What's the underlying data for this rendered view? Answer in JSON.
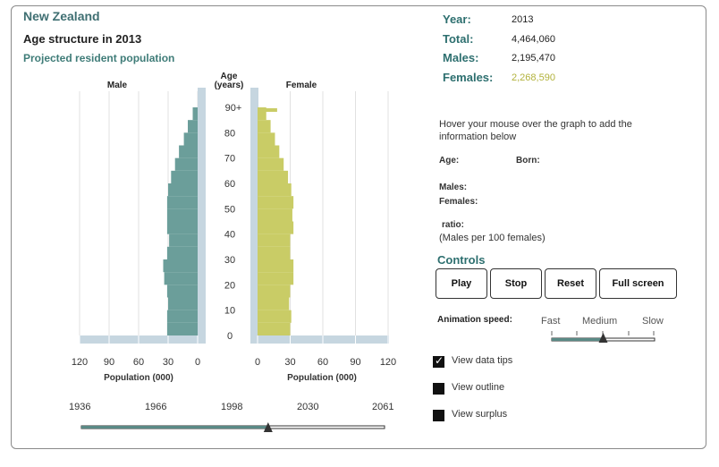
{
  "header": {
    "title": "New Zealand",
    "subtitle": "Age structure in 2013",
    "subsubtitle": "Projected resident population"
  },
  "stats": {
    "year_label": "Year:",
    "year_value": "2013",
    "total_label": "Total:",
    "total_value": "4,464,060",
    "males_label": "Males:",
    "males_value": "2,195,470",
    "females_label": "Females:",
    "females_value": "2,268,590"
  },
  "info": {
    "hint": "Hover your mouse over the graph to add the information below",
    "age_label": "Age:",
    "born_label": "Born:",
    "males_label": "Males:",
    "females_label": "Females:",
    "ratio_label": "ratio:",
    "ratio_desc": "(Males per 100 females)"
  },
  "controls": {
    "title": "Controls",
    "play": "Play",
    "stop": "Stop",
    "reset": "Reset",
    "fullscreen": "Full screen",
    "speed_label": "Animation speed:",
    "speed_fast": "Fast",
    "speed_medium": "Medium",
    "speed_slow": "Slow",
    "speed_value": 0.5
  },
  "checkboxes": [
    {
      "label": "View data tips",
      "checked": true
    },
    {
      "label": "View outline",
      "checked": false
    },
    {
      "label": "View surplus",
      "checked": false
    }
  ],
  "timeline": {
    "ticks": [
      "1936",
      "1966",
      "1998",
      "2030",
      "2061"
    ],
    "start_year": 1936,
    "end_year": 2061,
    "current_year": 2013
  },
  "colors": {
    "male": "#6b9e9a",
    "female": "#c9cc66",
    "axis_band": "#c6d6e0",
    "title": "#3f6f72",
    "female_value": "#b2b23c"
  },
  "chart_data": {
    "type": "population-pyramid",
    "title": "Age structure in 2013",
    "male_label": "Male",
    "female_label": "Female",
    "age_axis_label_1": "Age",
    "age_axis_label_2": "(years)",
    "age_ticks": [
      "90+",
      "80",
      "70",
      "60",
      "50",
      "40",
      "30",
      "20",
      "10",
      "0"
    ],
    "x_ticks": [
      "120",
      "90",
      "60",
      "30",
      "0"
    ],
    "x_ticks_female": [
      "0",
      "30",
      "60",
      "90",
      "120"
    ],
    "x_label": "Population (000)",
    "xlim": [
      0,
      120
    ],
    "ages": [
      0,
      5,
      10,
      15,
      20,
      25,
      30,
      35,
      40,
      45,
      50,
      55,
      60,
      65,
      70,
      75,
      80,
      85,
      90
    ],
    "male": [
      31,
      31,
      30,
      31,
      34,
      35,
      31,
      29,
      31,
      31,
      31,
      30,
      27,
      23,
      19,
      14,
      10,
      5,
      4
    ],
    "female": [
      30,
      31,
      29,
      30,
      33,
      33,
      30,
      30,
      33,
      32,
      33,
      31,
      28,
      24,
      20,
      16,
      12,
      8,
      18
    ]
  }
}
